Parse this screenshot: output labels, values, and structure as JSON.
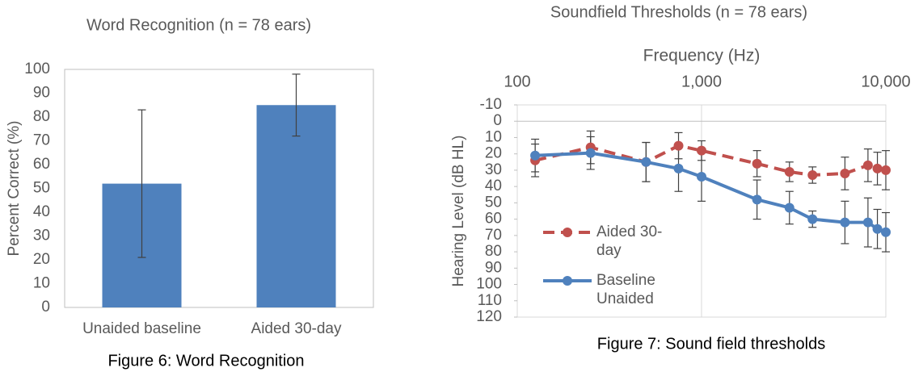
{
  "chart_data": [
    {
      "type": "bar",
      "title": "Word Recognition (n = 78 ears)",
      "caption": "Figure 6: Word Recognition",
      "ylabel": "Percent Correct (%)",
      "categories": [
        "Unaided baseline",
        "Aided 30-day"
      ],
      "values": [
        52,
        85
      ],
      "errors": [
        31,
        13
      ],
      "color": "#4f81bd",
      "ylim": [
        0,
        100
      ],
      "yticks": [
        0,
        10,
        20,
        30,
        40,
        50,
        60,
        70,
        80,
        90,
        100
      ]
    },
    {
      "type": "line",
      "title": "Soundfield Thresholds (n = 78 ears)",
      "caption": "Figure 7: Sound field thresholds",
      "xlabel": "Frequency (Hz)",
      "ylabel": "Hearing Level (dB HL)",
      "xscale": "log",
      "y_inverted": true,
      "x": [
        125,
        250,
        500,
        750,
        1000,
        2000,
        3000,
        4000,
        6000,
        8000,
        9000,
        10000
      ],
      "xlim": [
        100,
        10000
      ],
      "xticks": [
        100,
        {
          "value": 1000,
          "label": "1,000"
        },
        {
          "value": 10000,
          "label": "10,000"
        }
      ],
      "ylim": [
        -10,
        120
      ],
      "yticks": [
        -10,
        0,
        10,
        20,
        30,
        40,
        50,
        60,
        70,
        80,
        90,
        100,
        110,
        120
      ],
      "series": [
        {
          "name": "Aided 30-day",
          "color": "#c0504d",
          "dashed": true,
          "values": [
            24,
            16,
            25,
            15,
            18,
            26,
            31,
            33,
            32,
            27,
            29,
            30
          ],
          "errors": [
            10,
            10,
            12,
            8,
            6,
            8,
            6,
            5,
            10,
            10,
            10,
            12
          ]
        },
        {
          "name": "Baseline Unaided",
          "color": "#4f81bd",
          "dashed": false,
          "values": [
            21,
            19.5,
            25,
            29,
            34,
            48,
            53,
            60,
            62,
            62,
            66,
            68
          ],
          "errors": [
            10,
            10,
            12,
            14,
            15,
            12,
            10,
            5,
            13,
            15,
            12,
            12
          ]
        }
      ]
    }
  ]
}
